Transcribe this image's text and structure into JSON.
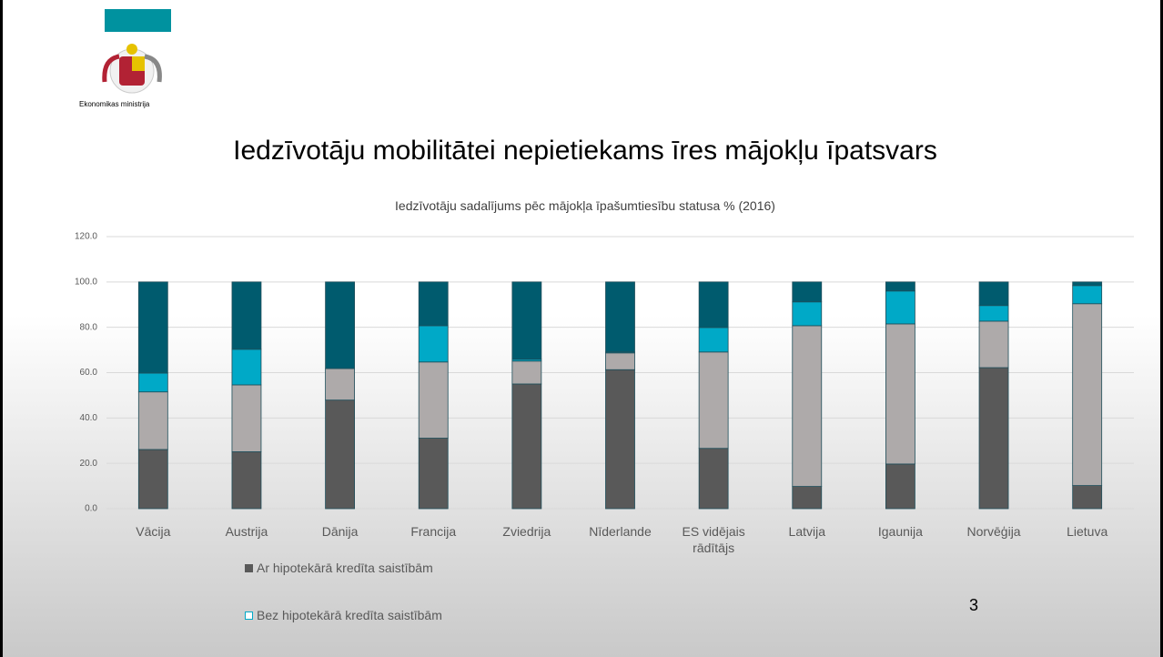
{
  "header": {
    "organization": "Ekonomikas ministrija"
  },
  "page_number": "3",
  "chart_data": {
    "type": "stacked_bar",
    "title": "Iedzīvotāju mobilitātei nepietiekams īres mājokļu īpatsvars",
    "subtitle": "Iedzīvotāju sadalījums pēc mājokļa īpašumtiesību statusa % (2016)",
    "categories": [
      "Vācija",
      "Austrija",
      "Dānija",
      "Francija",
      "Zviedrija",
      "Nīderlande",
      "ES vidējais rādītājs",
      "Latvija",
      "Igaunija",
      "Norvēģija",
      "Lietuva"
    ],
    "series": [
      {
        "name": "Ar hipotekārā kredīta saistībām",
        "color": "#595959",
        "values": [
          26.1,
          25.1,
          47.9,
          31.1,
          55.0,
          61.3,
          26.6,
          9.8,
          19.7,
          62.2,
          10.2
        ]
      },
      {
        "color": "#aeaaaa",
        "values": [
          25.4,
          29.5,
          13.9,
          33.6,
          10.1,
          7.4,
          42.5,
          70.9,
          61.8,
          20.5,
          80.2
        ]
      },
      {
        "color": "#00a9c7",
        "values": [
          8.3,
          15.7,
          0.0,
          16.0,
          0.8,
          0.4,
          10.8,
          10.5,
          14.5,
          6.9,
          8.0
        ]
      },
      {
        "color": "#005b6e",
        "values": [
          40.2,
          29.7,
          38.2,
          19.3,
          34.1,
          30.9,
          20.1,
          8.8,
          4.0,
          10.4,
          1.6
        ]
      }
    ],
    "legend_items": [
      {
        "name": "Ar hipotekārā kredīta saistībām",
        "color": "#595959"
      },
      {
        "name": "Bez hipotekārā kredīta saistībām",
        "color": "#00a9c7"
      }
    ],
    "ylim": [
      0,
      120
    ],
    "yticks": [
      {
        "value": 0,
        "label": "0.0"
      },
      {
        "value": 20,
        "label": "20.0"
      },
      {
        "value": 40,
        "label": "40.0"
      },
      {
        "value": 60,
        "label": "60.0"
      },
      {
        "value": 80,
        "label": "80.0"
      },
      {
        "value": 100,
        "label": "100.0"
      },
      {
        "value": 120,
        "label": "120.0"
      }
    ],
    "grid": true
  }
}
